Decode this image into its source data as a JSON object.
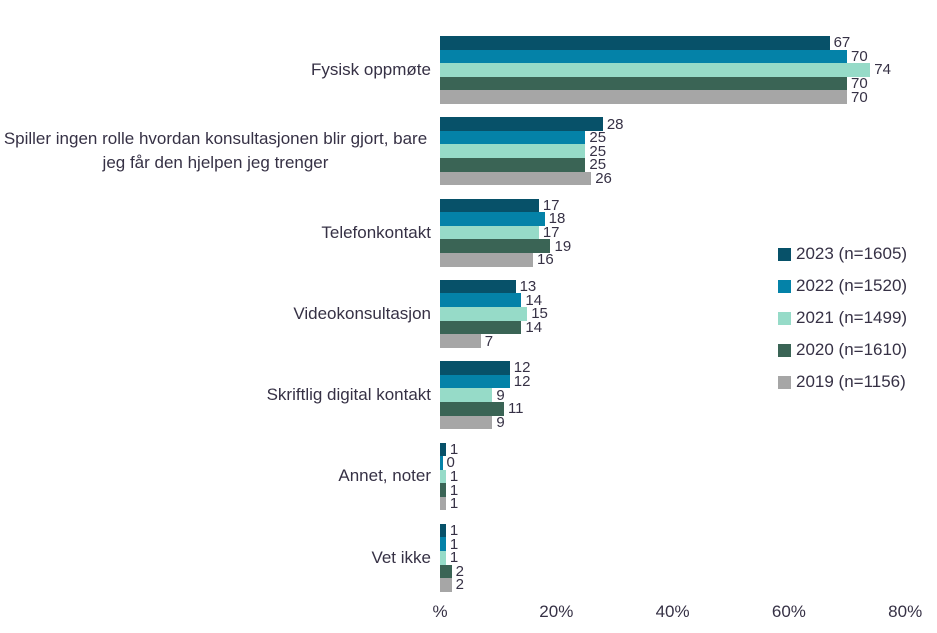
{
  "chart_data": {
    "type": "bar",
    "orientation": "horizontal",
    "title": "",
    "xlabel": "",
    "ylabel": "",
    "xlim": [
      0,
      80
    ],
    "grid": false,
    "legend_position": "right",
    "text_color": "#363145",
    "x_ticks": [
      {
        "label": "%",
        "value": 0
      },
      {
        "label": "20%",
        "value": 20
      },
      {
        "label": "40%",
        "value": 40
      },
      {
        "label": "60%",
        "value": 60
      },
      {
        "label": "80%",
        "value": 80
      }
    ],
    "categories": [
      "Fysisk oppmøte",
      "Spiller ingen rolle hvordan konsultasjonen blir gjort, bare jeg får den hjelpen jeg trenger",
      "Telefonkontakt",
      "Videokonsultasjon",
      "Skriftlig digital kontakt",
      "Annet, noter",
      "Vet ikke"
    ],
    "series": [
      {
        "name": "2023 (n=1605)",
        "color": "#075169",
        "values": [
          67,
          28,
          17,
          13,
          12,
          1,
          1
        ]
      },
      {
        "name": "2022 (n=1520)",
        "color": "#0482a8",
        "values": [
          70,
          25,
          18,
          14,
          12,
          0,
          1
        ]
      },
      {
        "name": "2021 (n=1499)",
        "color": "#96dbc8",
        "values": [
          74,
          25,
          17,
          15,
          9,
          1,
          1
        ]
      },
      {
        "name": "2020 (n=1610)",
        "color": "#3a6455",
        "values": [
          70,
          25,
          19,
          14,
          11,
          1,
          2
        ]
      },
      {
        "name": "2019 (n=1156)",
        "color": "#a6a6a6",
        "values": [
          70,
          26,
          16,
          7,
          9,
          1,
          2
        ]
      }
    ]
  }
}
